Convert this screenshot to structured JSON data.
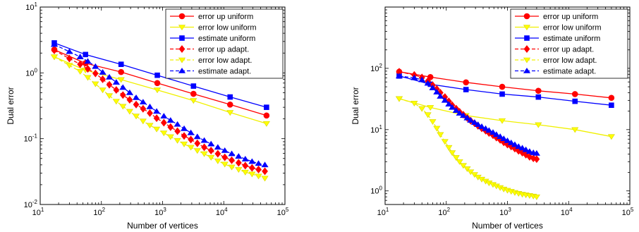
{
  "chart_data": [
    {
      "type": "line",
      "xscale": "log",
      "yscale": "log",
      "xlim": [
        10,
        100000
      ],
      "ylim": [
        0.01,
        10
      ],
      "xlabel": "Number of vertices",
      "ylabel": "Dual error",
      "grid": false,
      "legend_position": "top-right",
      "xticks": [
        {
          "base": "10",
          "exp": "1"
        },
        {
          "base": "10",
          "exp": "2"
        },
        {
          "base": "10",
          "exp": "3"
        },
        {
          "base": "10",
          "exp": "4"
        },
        {
          "base": "10",
          "exp": "5"
        }
      ],
      "yticks": [
        {
          "base": "10",
          "exp": "-2"
        },
        {
          "base": "10",
          "exp": "-1"
        },
        {
          "base": "10",
          "exp": "0"
        },
        {
          "base": "10",
          "exp": "1"
        }
      ],
      "series": [
        {
          "name": "error up uniform",
          "color": "#ff0000",
          "marker": "circle",
          "dash": false,
          "x": [
            17,
            55,
            210,
            820,
            3200,
            12700,
            50000
          ],
          "y": [
            2.25,
            1.4,
            1.03,
            0.7,
            0.48,
            0.33,
            0.225
          ]
        },
        {
          "name": "error low uniform",
          "color": "#ffff00",
          "marker": "triangle-down",
          "dash": false,
          "x": [
            17,
            55,
            210,
            820,
            3200,
            12700,
            50000
          ],
          "y": [
            1.75,
            1.1,
            0.79,
            0.55,
            0.38,
            0.25,
            0.17
          ]
        },
        {
          "name": "estimate uniform",
          "color": "#0000ff",
          "marker": "square",
          "dash": false,
          "x": [
            17,
            55,
            210,
            820,
            3200,
            12700,
            50000
          ],
          "y": [
            2.85,
            1.9,
            1.35,
            0.92,
            0.63,
            0.43,
            0.3
          ]
        },
        {
          "name": "error up adapt.",
          "color": "#ff0000",
          "marker": "diamond",
          "dash": true,
          "x": [
            17,
            30,
            45,
            60,
            80,
            105,
            135,
            175,
            225,
            290,
            370,
            480,
            620,
            800,
            1050,
            1350,
            1750,
            2250,
            2900,
            3700,
            4800,
            6200,
            8000,
            10400,
            13500,
            17500,
            22500,
            29000,
            37000,
            47000
          ],
          "y": [
            2.2,
            1.65,
            1.35,
            1.15,
            0.98,
            0.8,
            0.66,
            0.55,
            0.46,
            0.39,
            0.33,
            0.285,
            0.245,
            0.205,
            0.175,
            0.15,
            0.13,
            0.11,
            0.097,
            0.085,
            0.074,
            0.066,
            0.059,
            0.052,
            0.047,
            0.043,
            0.039,
            0.036,
            0.034,
            0.032
          ]
        },
        {
          "name": "error low adapt.",
          "color": "#ffff00",
          "marker": "triangle-down",
          "dash": true,
          "x": [
            17,
            30,
            45,
            60,
            80,
            105,
            135,
            175,
            225,
            290,
            370,
            480,
            620,
            800,
            1050,
            1350,
            1750,
            2250,
            2900,
            3700,
            4800,
            6200,
            8000,
            10400,
            13500,
            17500,
            22500,
            29000,
            37000,
            47000
          ],
          "y": [
            1.75,
            1.3,
            1.05,
            0.85,
            0.68,
            0.55,
            0.45,
            0.37,
            0.31,
            0.26,
            0.22,
            0.185,
            0.16,
            0.14,
            0.122,
            0.107,
            0.094,
            0.083,
            0.074,
            0.066,
            0.059,
            0.052,
            0.046,
            0.041,
            0.037,
            0.034,
            0.031,
            0.029,
            0.027,
            0.025
          ]
        },
        {
          "name": "estimate adapt.",
          "color": "#0000ff",
          "marker": "triangle-up",
          "dash": true,
          "x": [
            17,
            30,
            45,
            60,
            80,
            105,
            135,
            175,
            225,
            290,
            370,
            480,
            620,
            800,
            1050,
            1350,
            1750,
            2250,
            2900,
            3700,
            4800,
            6200,
            8000,
            10400,
            13500,
            17500,
            22500,
            29000,
            37000,
            47000
          ],
          "y": [
            2.7,
            2.1,
            1.75,
            1.5,
            1.25,
            1.02,
            0.86,
            0.72,
            0.6,
            0.5,
            0.42,
            0.36,
            0.305,
            0.26,
            0.22,
            0.19,
            0.165,
            0.142,
            0.123,
            0.107,
            0.094,
            0.083,
            0.074,
            0.066,
            0.059,
            0.054,
            0.049,
            0.045,
            0.042,
            0.04
          ]
        }
      ]
    },
    {
      "type": "line",
      "xscale": "log",
      "yscale": "log",
      "xlim": [
        10,
        100000
      ],
      "ylim": [
        0.6,
        1000
      ],
      "xlabel": "Number of vertices",
      "ylabel": "Dual error",
      "grid": false,
      "legend_position": "top-right",
      "xticks": [
        {
          "base": "10",
          "exp": "1"
        },
        {
          "base": "10",
          "exp": "2"
        },
        {
          "base": "10",
          "exp": "3"
        },
        {
          "base": "10",
          "exp": "4"
        },
        {
          "base": "10",
          "exp": "5"
        }
      ],
      "yticks": [
        {
          "base": "10",
          "exp": "0"
        },
        {
          "base": "10",
          "exp": "1"
        },
        {
          "base": "10",
          "exp": "2"
        }
      ],
      "series": [
        {
          "name": "error up uniform",
          "color": "#ff0000",
          "marker": "circle",
          "dash": false,
          "x": [
            17,
            55,
            210,
            820,
            3200,
            12700,
            50000
          ],
          "y": [
            88,
            72,
            59,
            50,
            43,
            38,
            33
          ]
        },
        {
          "name": "error low uniform",
          "color": "#ffff00",
          "marker": "triangle-down",
          "dash": false,
          "x": [
            17,
            55,
            210,
            820,
            3200,
            12700,
            50000
          ],
          "y": [
            32,
            23,
            17,
            14,
            12,
            10,
            7.7
          ]
        },
        {
          "name": "estimate uniform",
          "color": "#0000ff",
          "marker": "square",
          "dash": false,
          "x": [
            17,
            55,
            210,
            820,
            3200,
            12700,
            50000
          ],
          "y": [
            75,
            55,
            45,
            38,
            34,
            29,
            25
          ]
        },
        {
          "name": "error up adapt.",
          "color": "#ff0000",
          "marker": "diamond",
          "dash": true,
          "x": [
            17,
            30,
            40,
            50,
            60,
            70,
            80,
            95,
            110,
            125,
            145,
            165,
            190,
            220,
            250,
            290,
            330,
            380,
            440,
            500,
            580,
            660,
            760,
            870,
            1000,
            1150,
            1320,
            1520,
            1750,
            2000,
            2300,
            2650,
            3000
          ],
          "y": [
            88,
            78,
            71,
            62,
            53,
            46,
            40,
            34,
            29,
            25,
            22,
            19.5,
            17.5,
            15.5,
            14,
            12.7,
            11.5,
            10.5,
            9.6,
            8.8,
            8.1,
            7.4,
            6.8,
            6.2,
            5.7,
            5.3,
            4.9,
            4.5,
            4.2,
            3.9,
            3.6,
            3.4,
            3.3
          ]
        },
        {
          "name": "error low adapt.",
          "color": "#ffff00",
          "marker": "triangle-down",
          "dash": true,
          "x": [
            17,
            30,
            40,
            50,
            60,
            70,
            80,
            95,
            110,
            125,
            145,
            165,
            190,
            220,
            250,
            290,
            330,
            380,
            440,
            500,
            580,
            660,
            760,
            870,
            1000,
            1150,
            1320,
            1520,
            1750,
            2000,
            2300,
            2650,
            3000
          ],
          "y": [
            32,
            27,
            22,
            17.5,
            13.5,
            10.5,
            8.3,
            6.4,
            5.1,
            4.2,
            3.5,
            3.0,
            2.6,
            2.3,
            2.05,
            1.85,
            1.68,
            1.55,
            1.44,
            1.35,
            1.27,
            1.2,
            1.13,
            1.07,
            1.02,
            0.98,
            0.94,
            0.91,
            0.88,
            0.86,
            0.84,
            0.82,
            0.8
          ]
        },
        {
          "name": "estimate adapt.",
          "color": "#0000ff",
          "marker": "triangle-up",
          "dash": true,
          "x": [
            17,
            30,
            40,
            50,
            60,
            70,
            80,
            95,
            110,
            125,
            145,
            165,
            190,
            220,
            250,
            290,
            330,
            380,
            440,
            500,
            580,
            660,
            760,
            870,
            1000,
            1150,
            1320,
            1520,
            1750,
            2000,
            2300,
            2650,
            3000
          ],
          "y": [
            75,
            70,
            65,
            57,
            48,
            41,
            35,
            30,
            26,
            23,
            20.5,
            18.5,
            17,
            15.5,
            14.2,
            13.1,
            12.1,
            11.2,
            10.4,
            9.7,
            9.0,
            8.3,
            7.7,
            7.1,
            6.6,
            6.1,
            5.7,
            5.3,
            5.0,
            4.7,
            4.4,
            4.2,
            4.1
          ]
        }
      ]
    }
  ]
}
